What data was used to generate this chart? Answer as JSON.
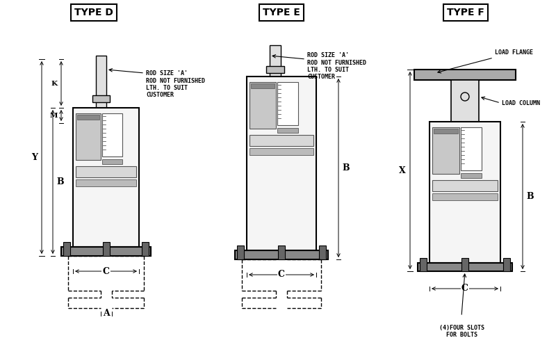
{
  "bg_color": "#ffffff",
  "line_color": "#000000",
  "type_d_label": "TYPE D",
  "type_e_label": "TYPE E",
  "type_f_label": "TYPE F",
  "ann_rod_1": "ROD SIZE 'A'",
  "ann_rod_2": "ROD NOT FURNISHED",
  "ann_rod_3": "LTH. TO SUIT",
  "ann_rod_4": "CUSTOMER",
  "ann_load_flange": "LOAD FLANGE",
  "ann_load_column": "LOAD COLUMN",
  "ann_slots": "(4)FOUR SLOTS\nFOR BOLTS"
}
